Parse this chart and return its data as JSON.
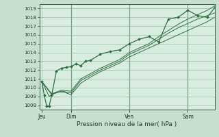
{
  "xlabel": "Pression niveau de la mer( hPa )",
  "bg_color": "#c8dfd0",
  "plot_bg_color": "#d8ede0",
  "line_color": "#2d6e3e",
  "grid_color": "#9abfaa",
  "ylim": [
    1007.5,
    1019.5
  ],
  "xlim": [
    0,
    72
  ],
  "yticks": [
    1008,
    1009,
    1010,
    1011,
    1012,
    1013,
    1014,
    1015,
    1016,
    1017,
    1018,
    1019
  ],
  "day_labels": [
    "Jeu",
    "Dim",
    "Ven",
    "Sam"
  ],
  "day_positions": [
    1,
    13,
    37,
    61
  ],
  "vline_positions": [
    13,
    37,
    61
  ],
  "series1_x": [
    1,
    2,
    3,
    4,
    5,
    7,
    9,
    11,
    13,
    15,
    17,
    19,
    21,
    25,
    29,
    33,
    37,
    41,
    45,
    49,
    53,
    57,
    61,
    65,
    69,
    72
  ],
  "series1_y": [
    1010.7,
    1009.1,
    1007.9,
    1007.9,
    1009.1,
    1011.9,
    1012.2,
    1012.3,
    1012.4,
    1012.7,
    1012.5,
    1013.0,
    1013.1,
    1013.8,
    1014.1,
    1014.3,
    1015.0,
    1015.5,
    1015.8,
    1015.2,
    1017.8,
    1018.0,
    1018.8,
    1018.2,
    1018.0,
    1019.1
  ],
  "series2_x": [
    1,
    4,
    7,
    10,
    13,
    17,
    21,
    25,
    29,
    33,
    37,
    41,
    45,
    49,
    53,
    57,
    61,
    65,
    69,
    72
  ],
  "series2_y": [
    1010.7,
    1009.0,
    1009.5,
    1009.5,
    1009.2,
    1010.5,
    1011.2,
    1011.8,
    1012.3,
    1012.8,
    1013.5,
    1014.0,
    1014.5,
    1015.0,
    1015.5,
    1016.0,
    1016.5,
    1017.0,
    1017.5,
    1018.0
  ],
  "series3_x": [
    1,
    5,
    9,
    13,
    17,
    21,
    25,
    29,
    33,
    37,
    41,
    45,
    49,
    53,
    57,
    61,
    65,
    69,
    72
  ],
  "series3_y": [
    1010.7,
    1009.2,
    1009.6,
    1009.4,
    1010.8,
    1011.4,
    1012.0,
    1012.5,
    1013.0,
    1013.8,
    1014.3,
    1014.8,
    1015.5,
    1016.2,
    1016.8,
    1017.3,
    1017.8,
    1018.2,
    1018.5
  ],
  "series4_x": [
    1,
    5,
    9,
    13,
    17,
    21,
    25,
    29,
    33,
    37,
    41,
    45,
    49,
    53,
    57,
    61,
    65,
    69,
    72
  ],
  "series4_y": [
    1010.7,
    1009.3,
    1009.7,
    1009.6,
    1011.0,
    1011.6,
    1012.2,
    1012.7,
    1013.2,
    1014.0,
    1014.5,
    1015.0,
    1015.8,
    1016.5,
    1017.2,
    1017.8,
    1018.3,
    1018.8,
    1019.3
  ]
}
